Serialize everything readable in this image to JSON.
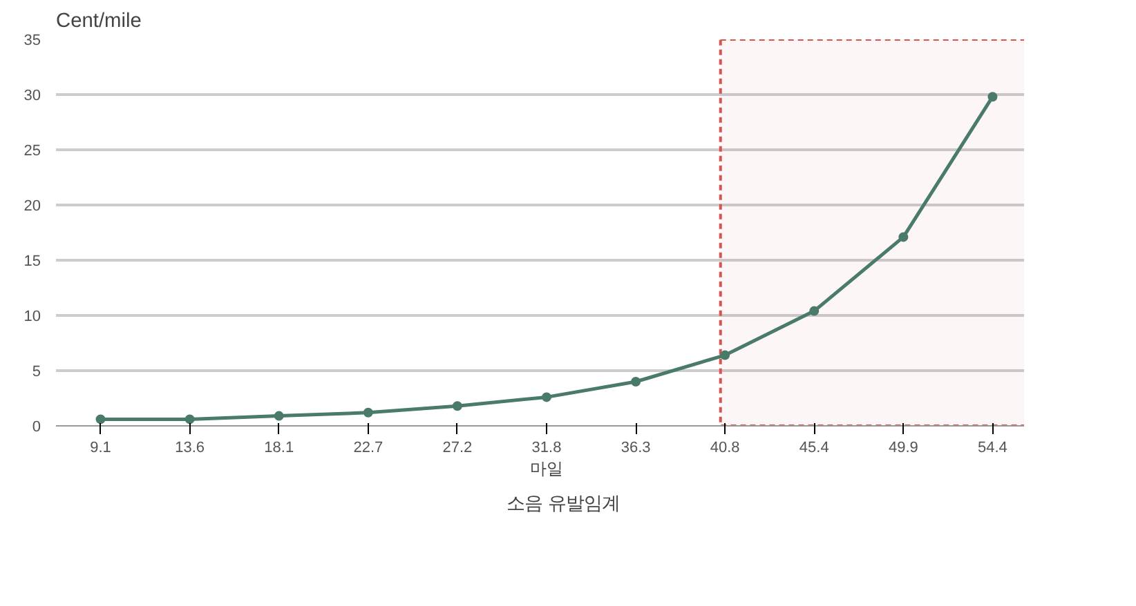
{
  "chart_data": {
    "type": "line",
    "ylabel": "Cent/mile",
    "xlabel": "마일",
    "categories": [
      "9.1",
      "13.6",
      "18.1",
      "22.7",
      "27.2",
      "31.8",
      "36.3",
      "40.8",
      "45.4",
      "49.9",
      "54.4"
    ],
    "series": [
      {
        "name": "소음 유발임계",
        "color": "#4a7a6a",
        "values": [
          0.6,
          0.6,
          0.9,
          1.2,
          1.8,
          2.6,
          4.0,
          6.4,
          10.4,
          17.1,
          29.8
        ]
      }
    ],
    "ylim": [
      0,
      35
    ],
    "yticks": [
      0,
      5,
      10,
      15,
      20,
      25,
      30,
      35
    ],
    "grid": "y",
    "legend": "bottom",
    "marker": "circle",
    "line_style": "solid",
    "bands": [
      {
        "axis": "x",
        "from": "40.8",
        "to": "54.4",
        "color": "#d9534f"
      }
    ]
  }
}
